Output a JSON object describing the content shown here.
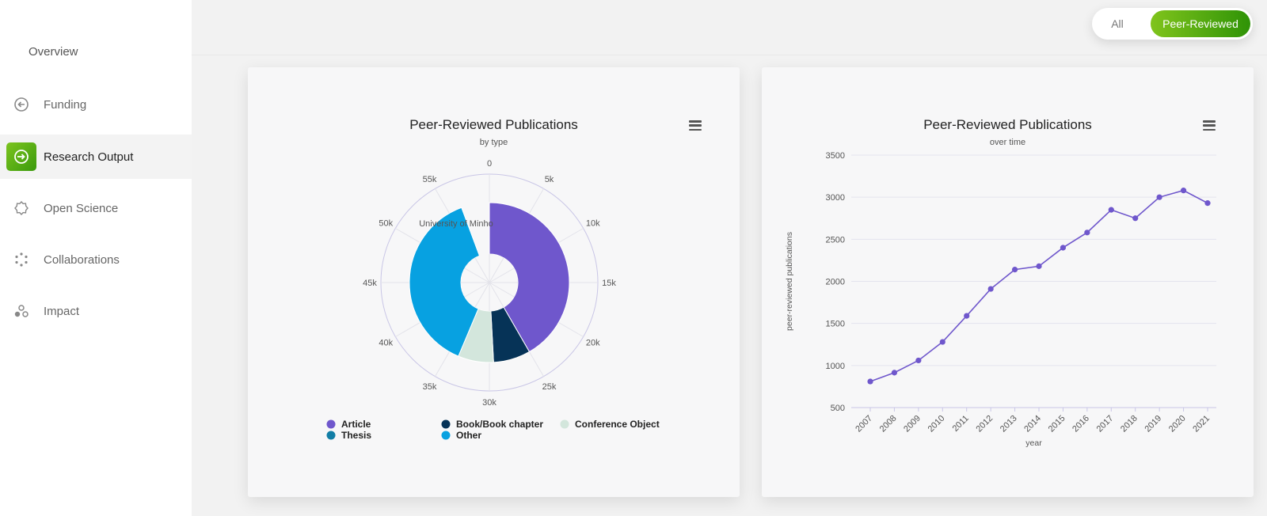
{
  "sidebar": {
    "overview": "Overview",
    "items": [
      {
        "label": "Funding",
        "icon": "funding-icon"
      },
      {
        "label": "Research Output",
        "icon": "research-output-icon",
        "active": true
      },
      {
        "label": "Open Science",
        "icon": "open-science-icon"
      },
      {
        "label": "Collaborations",
        "icon": "collaborations-icon"
      },
      {
        "label": "Impact",
        "icon": "impact-icon"
      }
    ]
  },
  "toggle": {
    "all": "All",
    "peer_reviewed": "Peer-Reviewed",
    "selected": "Peer-Reviewed"
  },
  "colors": {
    "accent_green": "#4caf14",
    "article": "#6f57cc",
    "book": "#063357",
    "conference": "#d3e6dc",
    "thesis": "#127ea6",
    "other": "#07a1e1",
    "line": "#6f57cc"
  },
  "chart_data": [
    {
      "type": "pie",
      "title": "Peer-Reviewed Publications",
      "subtitle": "by type",
      "center_label": "University of Minho",
      "radial_ticks": [
        "0",
        "5k",
        "10k",
        "15k",
        "20k",
        "25k",
        "30k",
        "35k",
        "40k",
        "45k",
        "50k",
        "55k"
      ],
      "radial_max": 60000,
      "series": [
        {
          "name": "Article",
          "value": 25000
        },
        {
          "name": "Book/Book chapter",
          "value": 4500
        },
        {
          "name": "Conference Object",
          "value": 4300
        },
        {
          "name": "Thesis",
          "value": 0
        },
        {
          "name": "Other",
          "value": 22800
        }
      ],
      "legend": [
        "Article",
        "Book/Book chapter",
        "Conference Object",
        "Thesis",
        "Other"
      ],
      "legend_position": "bottom"
    },
    {
      "type": "line",
      "title": "Peer-Reviewed Publications",
      "subtitle": "over time",
      "xlabel": "year",
      "ylabel": "peer-reviewed publications",
      "ylim": [
        500,
        3500
      ],
      "yticks": [
        500,
        1000,
        1500,
        2000,
        2500,
        3000,
        3500
      ],
      "x": [
        "2007",
        "2008",
        "2009",
        "2010",
        "2011",
        "2012",
        "2013",
        "2014",
        "2015",
        "2016",
        "2017",
        "2018",
        "2019",
        "2020",
        "2021"
      ],
      "values": [
        810,
        915,
        1060,
        1280,
        1590,
        1910,
        2140,
        2180,
        2400,
        2580,
        2850,
        2750,
        3000,
        3080,
        2930
      ],
      "grid": true
    }
  ]
}
